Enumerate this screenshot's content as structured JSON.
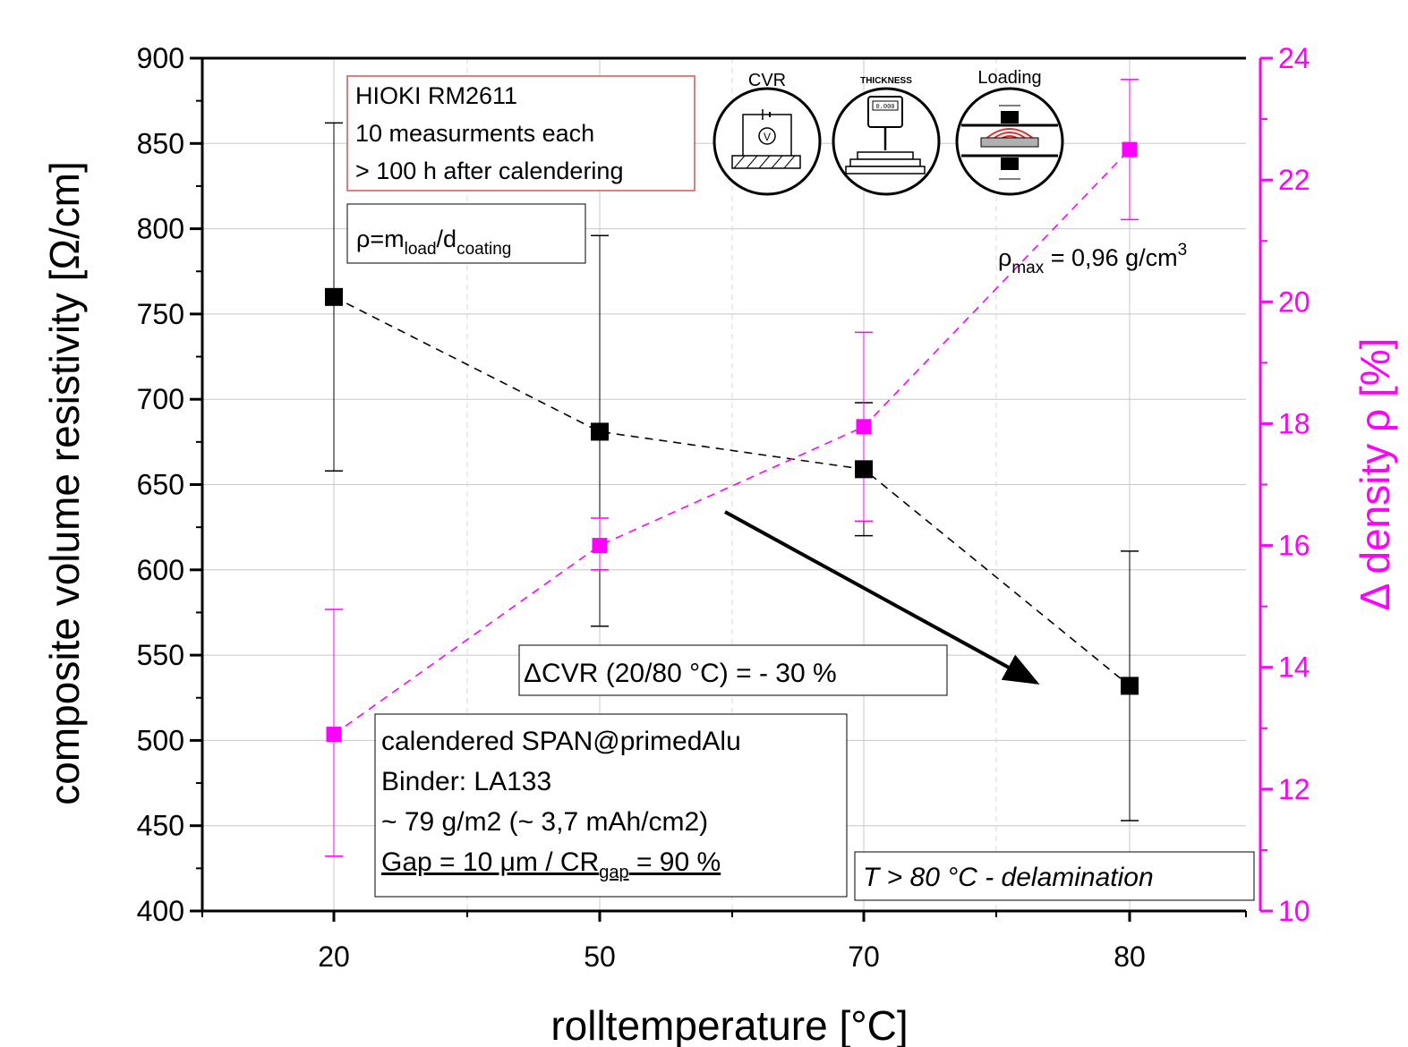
{
  "chart_data": {
    "type": "line",
    "xlabel": "rolltemperature [°C]",
    "ylabel": "composite volume resistivity [Ω/cm]",
    "y2label": "Δ density ρ [%]",
    "categories": [
      "20",
      "50",
      "70",
      "80"
    ],
    "x_ticks": [
      "20",
      "50",
      "70",
      "80"
    ],
    "ylim": [
      400,
      900
    ],
    "yticks": [
      "900",
      "850",
      "800",
      "750",
      "700",
      "650",
      "600",
      "550",
      "500",
      "450",
      "400"
    ],
    "y2lim": [
      10,
      24
    ],
    "y2ticks": [
      "24",
      "22",
      "20",
      "18",
      "16",
      "14",
      "12",
      "10"
    ],
    "grid": true,
    "series": [
      {
        "axis": "left",
        "color": "#000000",
        "values": [
          760,
          681,
          659,
          532
        ],
        "err_low": [
          658,
          567,
          620,
          453
        ],
        "err_high": [
          862,
          796,
          698,
          611
        ]
      },
      {
        "axis": "right",
        "color": "#ff00ff",
        "values": [
          12.9,
          16.0,
          17.95,
          22.5
        ],
        "err_low": [
          10.9,
          15.6,
          16.4,
          21.35
        ],
        "err_high": [
          14.95,
          16.45,
          19.5,
          23.65
        ]
      }
    ],
    "annotations": {
      "hioki": [
        "HIOKI RM2611",
        "10 measurments each",
        "> 100 h after calendering"
      ],
      "rho_formula": {
        "base": "ρ=m",
        "sub1": "load",
        "mid": "/d",
        "sub2": "coating"
      },
      "rho_max": {
        "base": "ρ",
        "sub": "max",
        "rest": " = 0,96 g/cm",
        "sup": "3"
      },
      "delta_cvr": "ΔCVR (20/80 °C) = - 30 %",
      "sample_info": [
        "calendered SPAN@primedAlu",
        "Binder: LA133",
        "~ 79 g/m2 (~ 3,7 mAh/cm2)"
      ],
      "gap_line": {
        "gap": "Gap = 10 μm",
        "slash": " / ",
        "cr": "CR",
        "cr_sub": "gap",
        "cr_rest": " = 90 %"
      },
      "delamination": "T > 80 °C - delamination",
      "icons": {
        "cvr": "CVR",
        "thickness": "THICKNESS",
        "loading": "Loading",
        "gauge": "0.000"
      }
    }
  }
}
